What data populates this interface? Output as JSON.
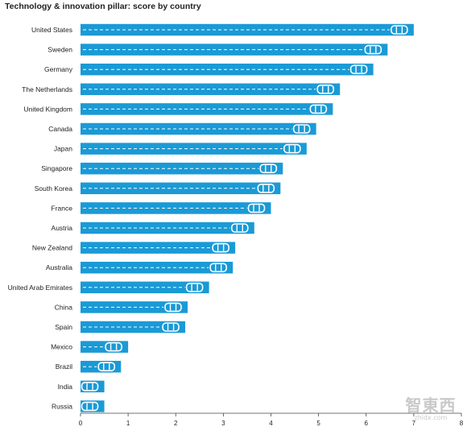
{
  "chart_data": {
    "type": "bar",
    "orientation": "horizontal",
    "title": "Technology & innovation pillar: score by country",
    "xlabel": "",
    "ylabel": "",
    "categories": [
      "United States",
      "Sweden",
      "Germany",
      "The Netherlands",
      "United Kingdom",
      "Canada",
      "Japan",
      "Singapore",
      "South Korea",
      "France",
      "Austria",
      "New Zealand",
      "Australia",
      "United Arab Emirates",
      "China",
      "Spain",
      "Mexico",
      "Brazil",
      "India",
      "Russia"
    ],
    "values": [
      7.0,
      6.45,
      6.15,
      5.45,
      5.3,
      4.95,
      4.75,
      4.25,
      4.2,
      4.0,
      3.65,
      3.25,
      3.2,
      2.7,
      2.25,
      2.2,
      1.0,
      0.85,
      0.5,
      0.5
    ],
    "xlim": [
      0,
      8
    ],
    "xticks": [
      "0",
      "1",
      "2",
      "3",
      "4",
      "5",
      "6",
      "7",
      "8"
    ],
    "grid": false,
    "legend": "none",
    "colors": {
      "bar": "#1a9ad6",
      "dash": "#ffffff",
      "car": "#ffffff",
      "axis": "#444444"
    }
  },
  "watermark": {
    "brand": "智東西",
    "url": "zhidx.com"
  }
}
